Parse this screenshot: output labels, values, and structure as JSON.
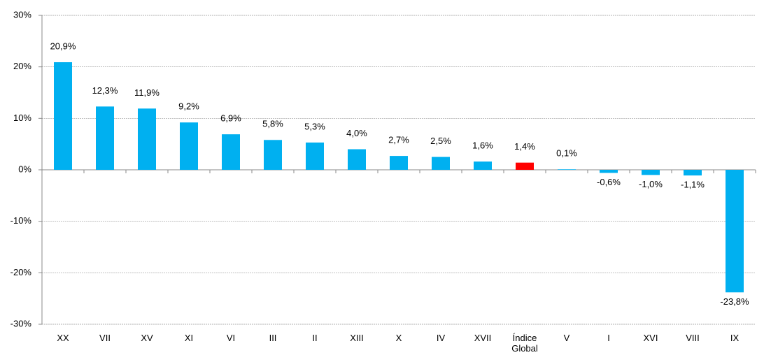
{
  "chart_data": {
    "type": "bar",
    "categories": [
      "XX",
      "VII",
      "XV",
      "XI",
      "VI",
      "III",
      "II",
      "XIII",
      "X",
      "IV",
      "XVII",
      "Índice Global",
      "V",
      "I",
      "XVI",
      "VIII",
      "IX"
    ],
    "values": [
      20.9,
      12.3,
      11.9,
      9.2,
      6.9,
      5.8,
      5.3,
      4.0,
      2.7,
      2.5,
      1.6,
      1.4,
      0.1,
      -0.6,
      -1.0,
      -1.1,
      -23.8
    ],
    "value_labels": [
      "20,9%",
      "12,3%",
      "11,9%",
      "9,2%",
      "6,9%",
      "5,8%",
      "5,3%",
      "4,0%",
      "2,7%",
      "2,5%",
      "1,6%",
      "1,4%",
      "0,1%",
      "-0,6%",
      "-1,0%",
      "-1,1%",
      "-23,8%"
    ],
    "colors": [
      "#00b0f0",
      "#00b0f0",
      "#00b0f0",
      "#00b0f0",
      "#00b0f0",
      "#00b0f0",
      "#00b0f0",
      "#00b0f0",
      "#00b0f0",
      "#00b0f0",
      "#00b0f0",
      "#ff0000",
      "#00b0f0",
      "#00b0f0",
      "#00b0f0",
      "#00b0f0",
      "#00b0f0"
    ],
    "ylim": [
      -30,
      30
    ],
    "yticks": [
      {
        "value": -30,
        "label": "-30%"
      },
      {
        "value": -20,
        "label": "-20%"
      },
      {
        "value": -10,
        "label": "-10%"
      },
      {
        "value": 0,
        "label": "0%"
      },
      {
        "value": 10,
        "label": "10%"
      },
      {
        "value": 20,
        "label": "20%"
      },
      {
        "value": 30,
        "label": "30%"
      }
    ],
    "grid": true
  }
}
